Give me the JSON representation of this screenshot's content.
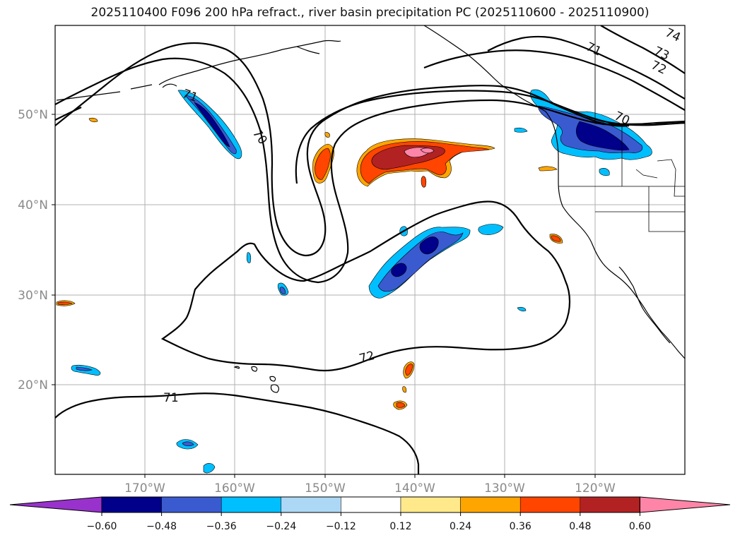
{
  "title": "2025110400 F096 200 hPa refract., river basin precipitation PC (2025110600 - 2025110900)",
  "latitude_labels": [
    "50°N",
    "40°N",
    "30°N",
    "20°N"
  ],
  "longitude_labels": [
    "170°W",
    "160°W",
    "150°W",
    "140°W",
    "130°W",
    "120°W"
  ],
  "contour_labels": [
    "70",
    "71",
    "72",
    "73",
    "74"
  ],
  "colorbar": {
    "tick_labels": [
      "−0.60",
      "−0.48",
      "−0.36",
      "−0.24",
      "−0.12",
      "0.12",
      "0.24",
      "0.36",
      "0.48",
      "0.60"
    ],
    "colors": [
      "#9932cc",
      "#00008b",
      "#3a5bd0",
      "#00bfff",
      "#add8f5",
      "#ffffff",
      "#ffe98a",
      "#ffa500",
      "#ff4500",
      "#b22222",
      "#ff85a8"
    ]
  },
  "colors": {
    "coast": "#000000",
    "contour": "#000000",
    "grid": "#b0b0b0",
    "negative_dark": "#00008b",
    "negative_mid": "#3a5bd0",
    "negative_light": "#00bfff",
    "positive_light": "#ffa500",
    "positive_mid": "#ff4500",
    "positive_dark": "#b22222",
    "positive_max": "#ff85a8"
  }
}
